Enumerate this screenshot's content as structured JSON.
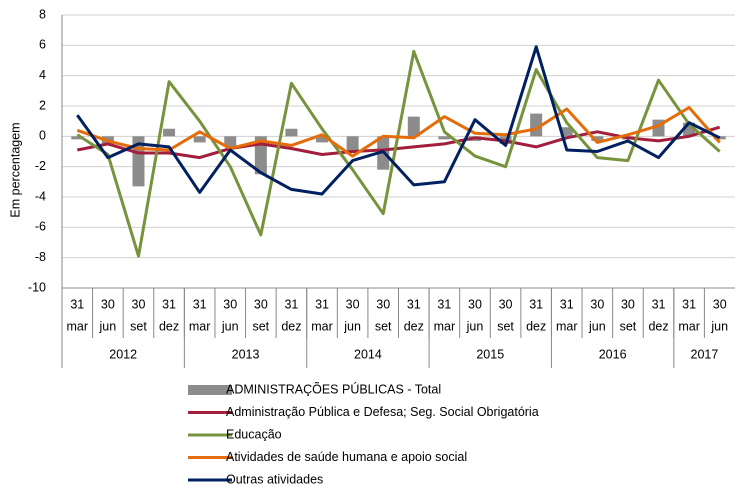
{
  "chart_data": {
    "type": "bar",
    "y_label": "Em percentagem",
    "categories": [
      [
        "31",
        "mar"
      ],
      [
        "30",
        "jun"
      ],
      [
        "30",
        "set"
      ],
      [
        "31",
        "dez"
      ],
      [
        "31",
        "mar"
      ],
      [
        "30",
        "jun"
      ],
      [
        "30",
        "set"
      ],
      [
        "31",
        "dez"
      ],
      [
        "31",
        "mar"
      ],
      [
        "30",
        "jun"
      ],
      [
        "30",
        "set"
      ],
      [
        "31",
        "dez"
      ],
      [
        "31",
        "mar"
      ],
      [
        "30",
        "jun"
      ],
      [
        "30",
        "set"
      ],
      [
        "31",
        "dez"
      ],
      [
        "31",
        "mar"
      ],
      [
        "30",
        "jun"
      ],
      [
        "30",
        "set"
      ],
      [
        "31",
        "dez"
      ],
      [
        "31",
        "mar"
      ],
      [
        "30",
        "jun"
      ]
    ],
    "groups": [
      {
        "label": "2012",
        "span": 4
      },
      {
        "label": "2013",
        "span": 4
      },
      {
        "label": "2014",
        "span": 4
      },
      {
        "label": "2015",
        "span": 4
      },
      {
        "label": "2016",
        "span": 4
      },
      {
        "label": "2017",
        "span": 2
      }
    ],
    "ylim": [
      -10,
      8
    ],
    "yticks": [
      -10,
      -8,
      -6,
      -4,
      -2,
      0,
      2,
      4,
      6,
      8
    ],
    "grid": true,
    "series": [
      {
        "name": "ADMINISTRAÇÕES PÚBLICAS - Total",
        "type": "bar",
        "color": "#8c8c8c",
        "values": [
          -0.2,
          -0.5,
          -3.3,
          0.5,
          -0.4,
          -0.7,
          -2.5,
          0.5,
          -0.4,
          -1.1,
          -2.2,
          1.3,
          -0.2,
          -0.3,
          -0.5,
          1.5,
          0.6,
          -0.3,
          -0.2,
          1.1,
          0.9,
          -0.2
        ]
      },
      {
        "name": "Administração Pública e Defesa; Seg. Social Obrigatória",
        "type": "line",
        "color": "#a21e3c",
        "values": [
          -0.9,
          -0.5,
          -1.1,
          -1.1,
          -1.4,
          -0.8,
          -0.5,
          -0.8,
          -1.2,
          -1.0,
          -0.9,
          -0.7,
          -0.5,
          -0.1,
          -0.3,
          -0.7,
          -0.1,
          0.3,
          -0.1,
          -0.3,
          0.0,
          0.6
        ]
      },
      {
        "name": "Educação",
        "type": "line",
        "color": "#77933c",
        "values": [
          0.1,
          -1.2,
          -7.9,
          3.6,
          1.0,
          -2.0,
          -6.5,
          3.5,
          0.5,
          -2.2,
          -5.1,
          5.6,
          0.3,
          -1.3,
          -2.0,
          4.4,
          0.9,
          -1.4,
          -1.6,
          3.7,
          0.8,
          -1.0
        ]
      },
      {
        "name": "Atividades de saúde humana e apoio social",
        "type": "line",
        "color": "#e46c0a",
        "values": [
          0.4,
          -0.3,
          -0.8,
          -0.9,
          0.3,
          -0.8,
          -0.3,
          -0.6,
          0.1,
          -1.3,
          0.0,
          -0.1,
          1.3,
          0.2,
          0.1,
          0.5,
          1.8,
          -0.4,
          0.1,
          0.7,
          1.9,
          -0.4
        ]
      },
      {
        "name": "Outras atividades",
        "type": "line",
        "color": "#002060",
        "values": [
          1.4,
          -1.4,
          -0.5,
          -0.7,
          -3.7,
          -0.9,
          -2.4,
          -3.5,
          -3.8,
          -1.6,
          -1.0,
          -3.2,
          -3.0,
          1.1,
          -0.6,
          5.9,
          -0.9,
          -1.0,
          -0.3,
          -1.4,
          0.9,
          -0.1
        ]
      }
    ]
  }
}
